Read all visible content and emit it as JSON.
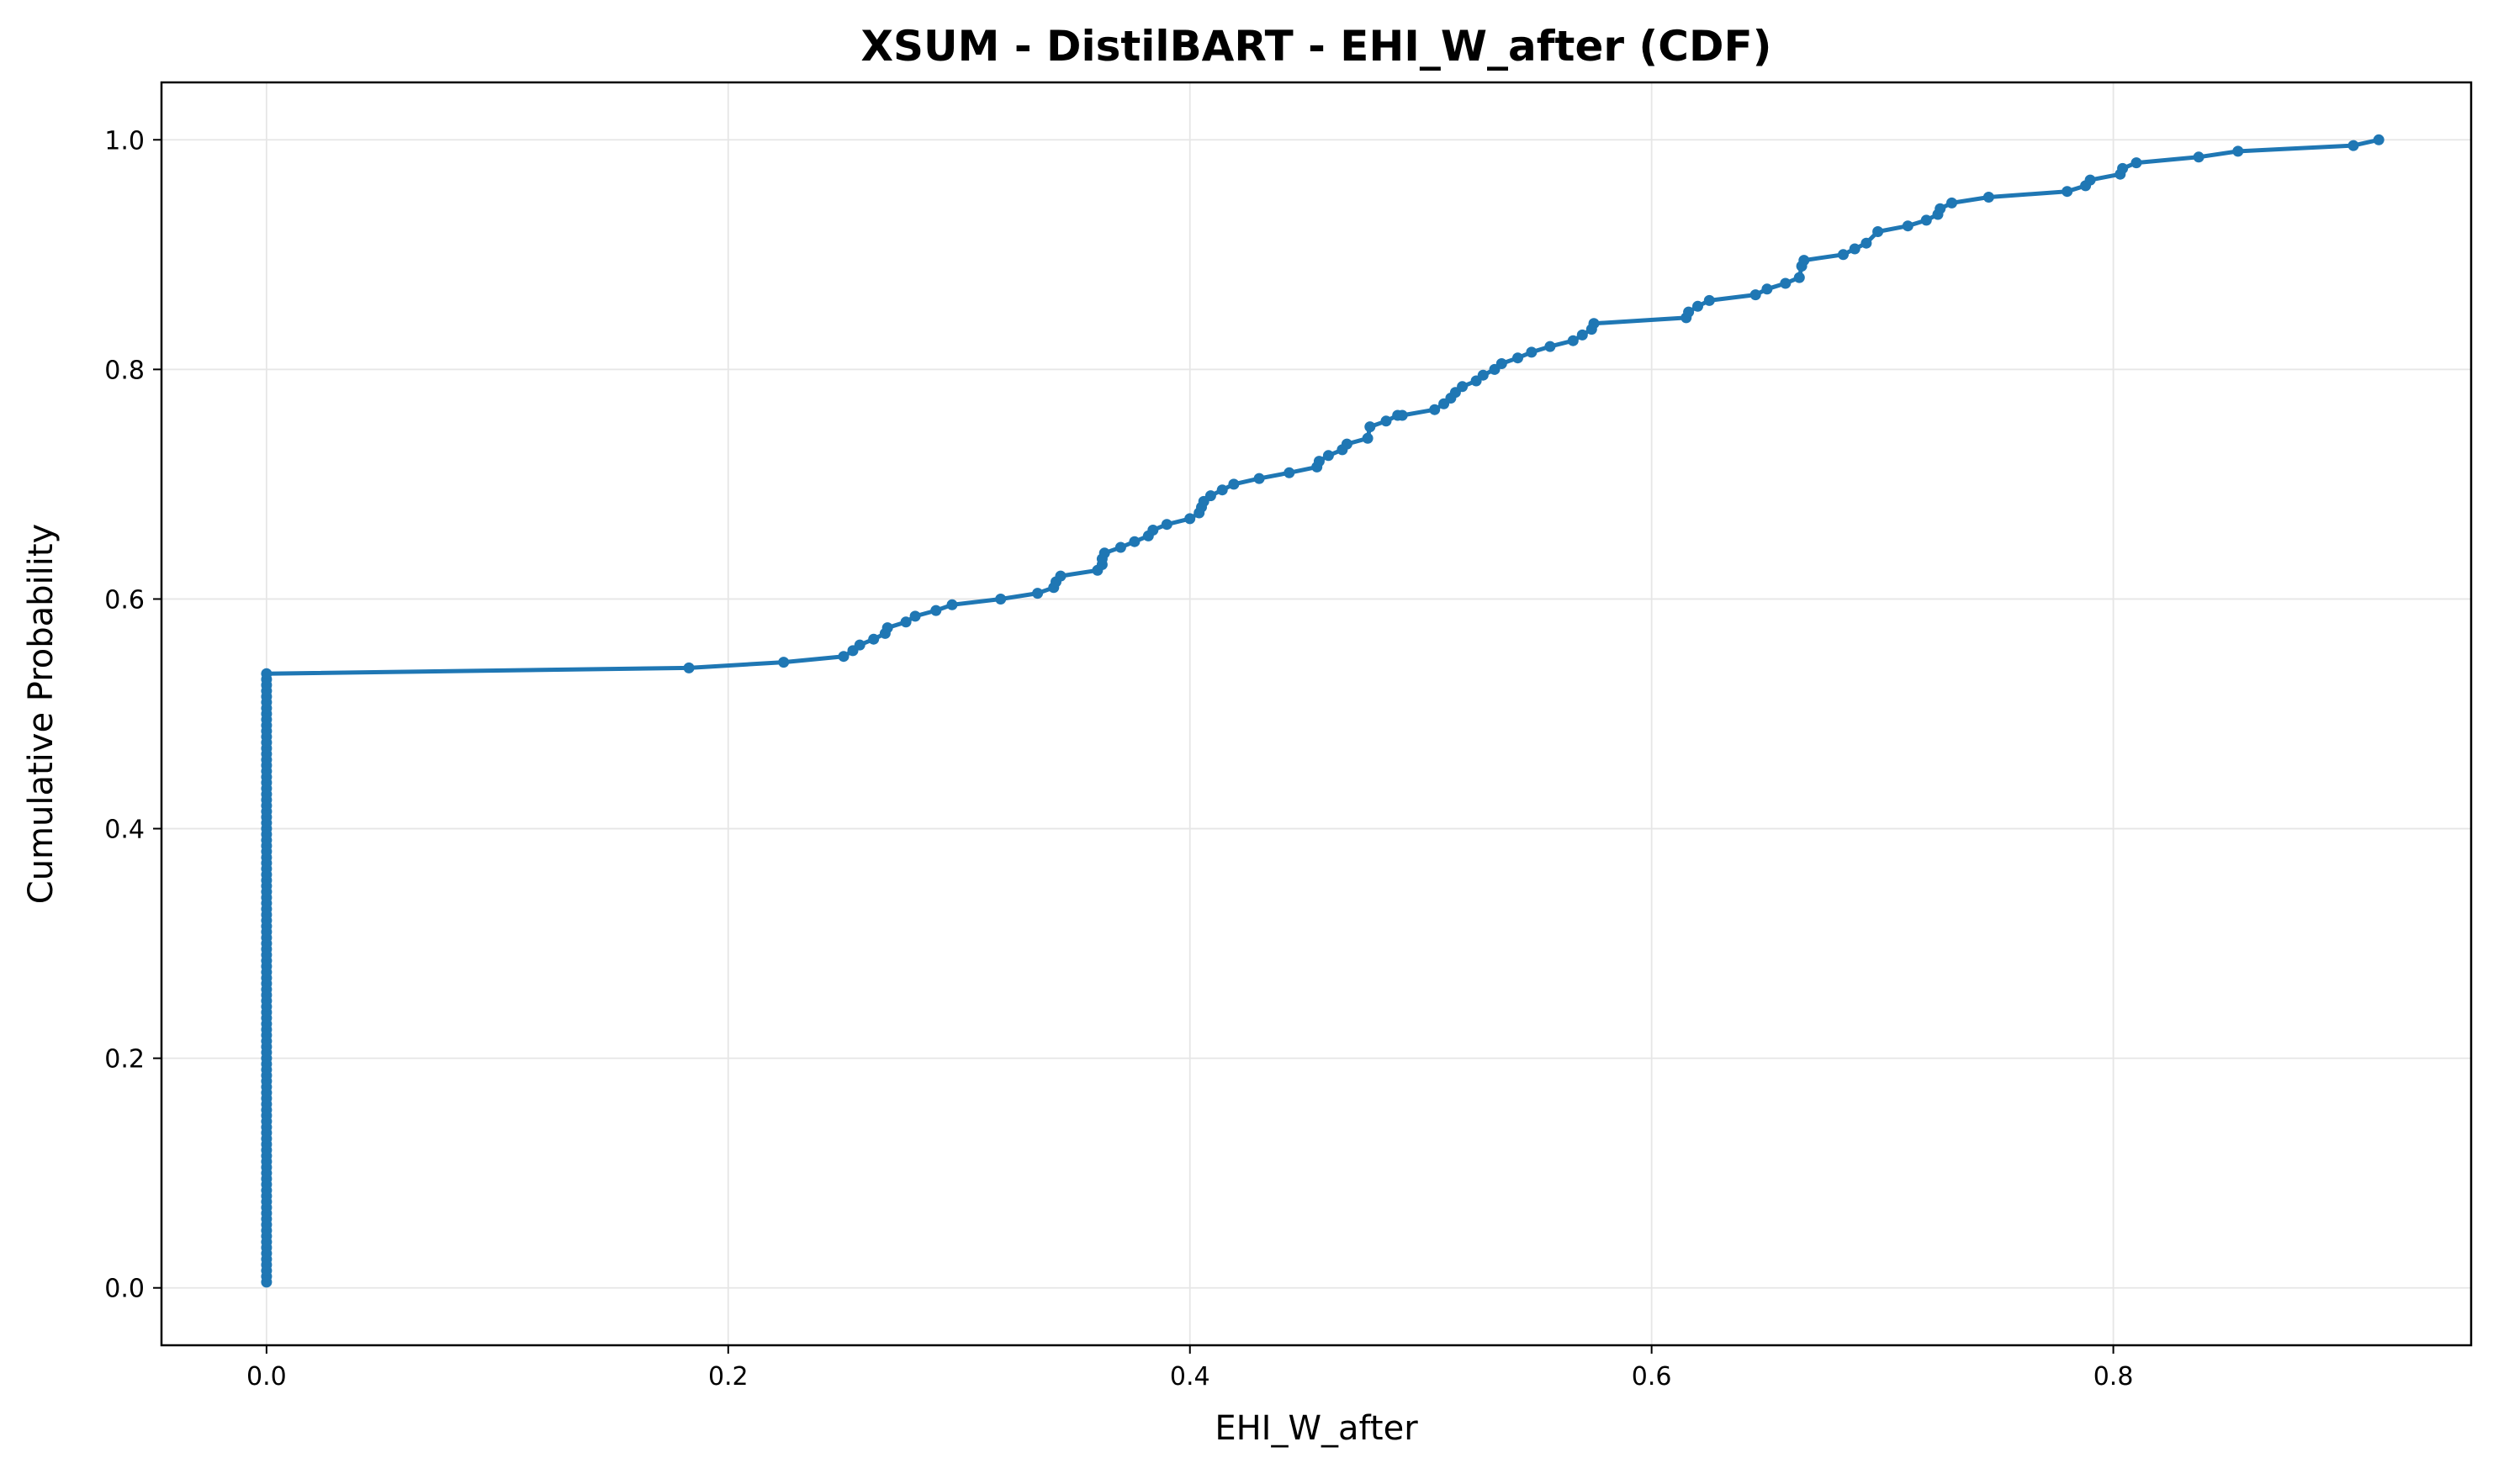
{
  "chart_data": {
    "type": "line",
    "title": "XSUM - DistilBART - EHI_W_after (CDF)",
    "xlabel": "EHI_W_after",
    "ylabel": "Cumulative Probability",
    "xlim": [
      -0.0455,
      0.955
    ],
    "ylim": [
      -0.05,
      1.05
    ],
    "xticks": [
      0.0,
      0.2,
      0.4,
      0.6,
      0.8
    ],
    "xtick_labels": [
      "0.0",
      "0.2",
      "0.4",
      "0.6",
      "0.8"
    ],
    "yticks": [
      0.0,
      0.2,
      0.4,
      0.6,
      0.8,
      1.0
    ],
    "ytick_labels": [
      "0.0",
      "0.2",
      "0.4",
      "0.6",
      "0.8",
      "1.0"
    ],
    "grid": true,
    "color": "#1f77b4",
    "series": [
      {
        "zero_count": 107,
        "zero_step": 0.005,
        "x": [
          0.183,
          0.224,
          0.25,
          0.254,
          0.257,
          0.263,
          0.268,
          0.269,
          0.277,
          0.281,
          0.29,
          0.297,
          0.318,
          0.334,
          0.341,
          0.342,
          0.344,
          0.36,
          0.362,
          0.362,
          0.363,
          0.37,
          0.376,
          0.382,
          0.384,
          0.39,
          0.4,
          0.404,
          0.405,
          0.406,
          0.409,
          0.414,
          0.419,
          0.43,
          0.443,
          0.455,
          0.456,
          0.46,
          0.466,
          0.468,
          0.477,
          0.478,
          0.485,
          0.49,
          0.492,
          0.506,
          0.51,
          0.513,
          0.515,
          0.518,
          0.524,
          0.527,
          0.532,
          0.535,
          0.542,
          0.548,
          0.556,
          0.566,
          0.57,
          0.574,
          0.575,
          0.615,
          0.616,
          0.62,
          0.625,
          0.645,
          0.65,
          0.658,
          0.664,
          0.665,
          0.666,
          0.683,
          0.688,
          0.693,
          0.698,
          0.711,
          0.719,
          0.724,
          0.725,
          0.73,
          0.746,
          0.78,
          0.788,
          0.79,
          0.803,
          0.804,
          0.81,
          0.837,
          0.854,
          0.904,
          0.915
        ],
        "y": [
          0.54,
          0.545,
          0.55,
          0.555,
          0.56,
          0.565,
          0.57,
          0.575,
          0.58,
          0.585,
          0.59,
          0.595,
          0.6,
          0.605,
          0.61,
          0.615,
          0.62,
          0.625,
          0.63,
          0.635,
          0.64,
          0.645,
          0.65,
          0.655,
          0.66,
          0.665,
          0.67,
          0.675,
          0.68,
          0.685,
          0.69,
          0.695,
          0.7,
          0.705,
          0.71,
          0.715,
          0.72,
          0.725,
          0.73,
          0.735,
          0.74,
          0.75,
          0.755,
          0.76,
          0.76,
          0.765,
          0.77,
          0.775,
          0.78,
          0.785,
          0.79,
          0.795,
          0.8,
          0.805,
          0.81,
          0.815,
          0.82,
          0.825,
          0.83,
          0.835,
          0.84,
          0.845,
          0.85,
          0.855,
          0.86,
          0.865,
          0.87,
          0.875,
          0.88,
          0.89,
          0.895,
          0.9,
          0.905,
          0.91,
          0.92,
          0.925,
          0.93,
          0.935,
          0.94,
          0.945,
          0.95,
          0.955,
          0.96,
          0.965,
          0.97,
          0.975,
          0.98,
          0.985,
          0.99,
          0.995,
          1.0
        ]
      }
    ]
  }
}
